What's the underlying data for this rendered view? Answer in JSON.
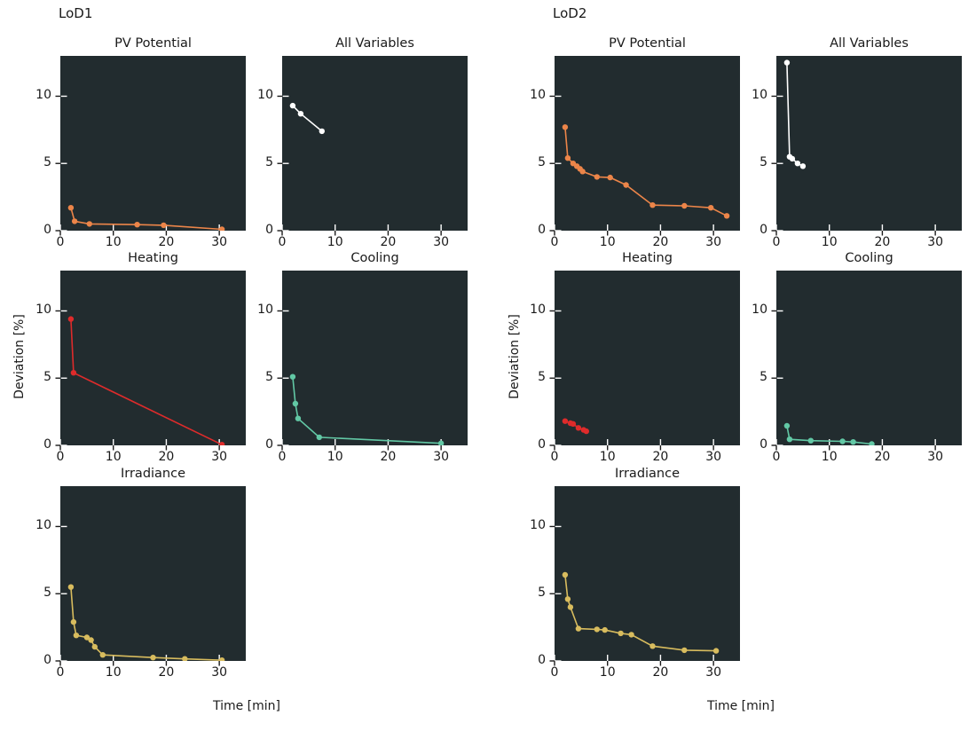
{
  "figure": {
    "background": "#ffffff",
    "panel_background": "#222c2f",
    "tick_color_outer": "#1a1a1a",
    "tick_color_inner": "#ffffff",
    "text_color": "#1a1a1a"
  },
  "chart_data": [
    {
      "group": "LoD1",
      "type": "line",
      "xlabel": "Time [min]",
      "ylabel": "Deviation [%]",
      "xlim": [
        0,
        35
      ],
      "ylim": [
        0,
        13
      ],
      "xticks": [
        0,
        10,
        20,
        30
      ],
      "yticks": [
        0,
        5,
        10
      ],
      "grid": false,
      "legend": "none",
      "subplots": [
        {
          "title": "PV Potential",
          "color": "#ec8549",
          "points": [
            [
              2,
              1.7
            ],
            [
              2.7,
              0.7
            ],
            [
              5.5,
              0.5
            ],
            [
              14.5,
              0.45
            ],
            [
              19.5,
              0.4
            ],
            [
              30.5,
              0.1
            ]
          ]
        },
        {
          "title": "All Variables",
          "color": "#ffffff",
          "points": [
            [
              2,
              9.3
            ],
            [
              3.5,
              8.7
            ],
            [
              7.5,
              7.4
            ]
          ]
        },
        {
          "title": "Heating",
          "color": "#de2b2b",
          "points": [
            [
              2,
              9.4
            ],
            [
              2.5,
              5.4
            ],
            [
              30.5,
              0.05
            ]
          ]
        },
        {
          "title": "Cooling",
          "color": "#62c8a5",
          "points": [
            [
              2,
              5.1
            ],
            [
              2.5,
              3.1
            ],
            [
              3,
              2.0
            ],
            [
              7,
              0.6
            ],
            [
              30,
              0.15
            ]
          ]
        },
        {
          "title": "Irradiance",
          "color": "#d8bc5e",
          "points": [
            [
              2,
              5.5
            ],
            [
              2.5,
              2.9
            ],
            [
              3,
              1.9
            ],
            [
              5,
              1.75
            ],
            [
              5.8,
              1.55
            ],
            [
              6.5,
              1.05
            ],
            [
              8,
              0.45
            ],
            [
              17.5,
              0.25
            ],
            [
              23.5,
              0.15
            ],
            [
              30.5,
              0.05
            ]
          ]
        }
      ]
    },
    {
      "group": "LoD2",
      "type": "line",
      "xlabel": "Time [min]",
      "ylabel": "Deviation [%]",
      "xlim": [
        0,
        35
      ],
      "ylim": [
        0,
        13
      ],
      "xticks": [
        0,
        10,
        20,
        30
      ],
      "yticks": [
        0,
        5,
        10
      ],
      "grid": false,
      "legend": "none",
      "subplots": [
        {
          "title": "PV Potential",
          "color": "#ec8549",
          "points": [
            [
              2,
              7.7
            ],
            [
              2.5,
              5.4
            ],
            [
              3.5,
              5.0
            ],
            [
              4.2,
              4.8
            ],
            [
              4.8,
              4.6
            ],
            [
              5.3,
              4.4
            ],
            [
              8,
              4.0
            ],
            [
              10.5,
              3.95
            ],
            [
              13.5,
              3.4
            ],
            [
              18.5,
              1.9
            ],
            [
              24.5,
              1.85
            ],
            [
              29.5,
              1.7
            ],
            [
              32.5,
              1.1
            ]
          ]
        },
        {
          "title": "All Variables",
          "color": "#ffffff",
          "points": [
            [
              2,
              12.5
            ],
            [
              2.5,
              5.5
            ],
            [
              3,
              5.35
            ],
            [
              4,
              5.0
            ],
            [
              5,
              4.8
            ]
          ]
        },
        {
          "title": "Heating",
          "color": "#de2b2b",
          "points": [
            [
              2,
              1.8
            ],
            [
              3,
              1.65
            ],
            [
              3.5,
              1.6
            ],
            [
              4.5,
              1.3
            ],
            [
              5.5,
              1.15
            ],
            [
              6,
              1.05
            ]
          ]
        },
        {
          "title": "Cooling",
          "color": "#62c8a5",
          "points": [
            [
              2,
              1.45
            ],
            [
              2.5,
              0.45
            ],
            [
              6.5,
              0.35
            ],
            [
              12.5,
              0.3
            ],
            [
              14.5,
              0.25
            ],
            [
              18,
              0.1
            ]
          ]
        },
        {
          "title": "Irradiance",
          "color": "#d8bc5e",
          "points": [
            [
              2,
              6.4
            ],
            [
              2.5,
              4.6
            ],
            [
              3,
              4.0
            ],
            [
              4.5,
              2.4
            ],
            [
              8,
              2.35
            ],
            [
              9.5,
              2.3
            ],
            [
              12.5,
              2.05
            ],
            [
              14.5,
              1.95
            ],
            [
              18.5,
              1.1
            ],
            [
              24.5,
              0.8
            ],
            [
              30.5,
              0.75
            ]
          ]
        }
      ]
    }
  ]
}
